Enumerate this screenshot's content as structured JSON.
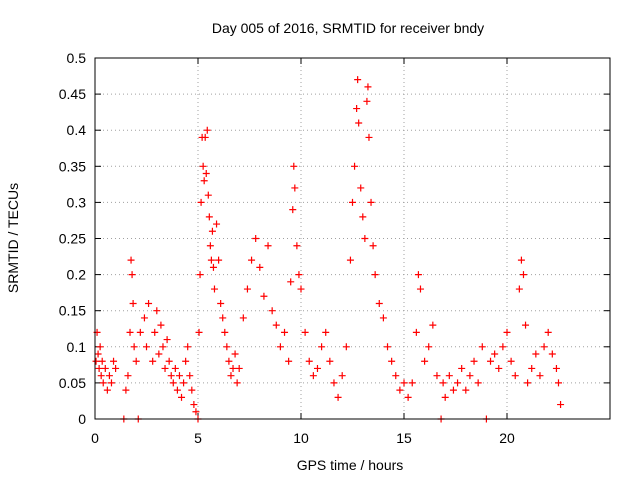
{
  "chart_data": {
    "type": "scatter",
    "title": "Day 005 of 2016, SRMTID for receiver bndy",
    "xlabel": "GPS time / hours",
    "ylabel": "SRMTID / TECUs",
    "xlim": [
      0,
      25
    ],
    "ylim": [
      0,
      0.5
    ],
    "x_ticks": [
      0,
      5,
      10,
      15,
      20
    ],
    "x_tick_labels": [
      "0",
      "5",
      "10",
      "15",
      "20"
    ],
    "y_ticks": [
      0,
      0.05,
      0.1,
      0.15,
      0.2,
      0.25,
      0.3,
      0.35,
      0.4,
      0.45,
      0.5
    ],
    "y_tick_labels": [
      "0",
      "0.05",
      "0.1",
      "0.15",
      "0.2",
      "0.25",
      "0.3",
      "0.35",
      "0.4",
      "0.45",
      "0.5"
    ],
    "grid": true,
    "marker": "+",
    "marker_color": "#ff0000",
    "series": [
      {
        "name": "SRMTID",
        "points": [
          [
            0.05,
            0.08
          ],
          [
            0.1,
            0.12
          ],
          [
            0.15,
            0.09
          ],
          [
            0.2,
            0.07
          ],
          [
            0.25,
            0.1
          ],
          [
            0.3,
            0.06
          ],
          [
            0.35,
            0.08
          ],
          [
            0.4,
            0.05
          ],
          [
            0.5,
            0.07
          ],
          [
            0.6,
            0.04
          ],
          [
            0.7,
            0.06
          ],
          [
            0.8,
            0.05
          ],
          [
            0.9,
            0.08
          ],
          [
            1.0,
            0.07
          ],
          [
            1.4,
            0.0
          ],
          [
            1.5,
            0.04
          ],
          [
            1.6,
            0.06
          ],
          [
            1.7,
            0.12
          ],
          [
            1.75,
            0.22
          ],
          [
            1.8,
            0.2
          ],
          [
            1.85,
            0.16
          ],
          [
            1.9,
            0.1
          ],
          [
            2.0,
            0.08
          ],
          [
            2.1,
            0.0
          ],
          [
            2.2,
            0.12
          ],
          [
            2.4,
            0.14
          ],
          [
            2.5,
            0.1
          ],
          [
            2.6,
            0.16
          ],
          [
            2.8,
            0.08
          ],
          [
            2.9,
            0.12
          ],
          [
            3.0,
            0.15
          ],
          [
            3.1,
            0.09
          ],
          [
            3.2,
            0.13
          ],
          [
            3.3,
            0.1
          ],
          [
            3.4,
            0.07
          ],
          [
            3.5,
            0.11
          ],
          [
            3.6,
            0.08
          ],
          [
            3.7,
            0.06
          ],
          [
            3.8,
            0.05
          ],
          [
            3.9,
            0.07
          ],
          [
            4.0,
            0.04
          ],
          [
            4.1,
            0.06
          ],
          [
            4.2,
            0.03
          ],
          [
            4.3,
            0.05
          ],
          [
            4.4,
            0.08
          ],
          [
            4.5,
            0.1
          ],
          [
            4.6,
            0.06
          ],
          [
            4.7,
            0.04
          ],
          [
            4.8,
            0.02
          ],
          [
            4.9,
            0.01
          ],
          [
            5.0,
            0.0
          ],
          [
            5.05,
            0.12
          ],
          [
            5.1,
            0.2
          ],
          [
            5.15,
            0.3
          ],
          [
            5.2,
            0.39
          ],
          [
            5.25,
            0.35
          ],
          [
            5.3,
            0.33
          ],
          [
            5.35,
            0.39
          ],
          [
            5.4,
            0.34
          ],
          [
            5.45,
            0.4
          ],
          [
            5.5,
            0.31
          ],
          [
            5.55,
            0.28
          ],
          [
            5.6,
            0.24
          ],
          [
            5.65,
            0.22
          ],
          [
            5.7,
            0.26
          ],
          [
            5.75,
            0.21
          ],
          [
            5.8,
            0.18
          ],
          [
            5.9,
            0.27
          ],
          [
            6.0,
            0.22
          ],
          [
            6.1,
            0.16
          ],
          [
            6.2,
            0.14
          ],
          [
            6.3,
            0.12
          ],
          [
            6.4,
            0.1
          ],
          [
            6.5,
            0.08
          ],
          [
            6.6,
            0.06
          ],
          [
            6.7,
            0.07
          ],
          [
            6.8,
            0.09
          ],
          [
            6.9,
            0.05
          ],
          [
            7.0,
            0.07
          ],
          [
            7.2,
            0.14
          ],
          [
            7.4,
            0.18
          ],
          [
            7.6,
            0.22
          ],
          [
            7.8,
            0.25
          ],
          [
            8.0,
            0.21
          ],
          [
            8.2,
            0.17
          ],
          [
            8.4,
            0.24
          ],
          [
            8.6,
            0.15
          ],
          [
            8.8,
            0.13
          ],
          [
            9.0,
            0.1
          ],
          [
            9.2,
            0.12
          ],
          [
            9.4,
            0.08
          ],
          [
            9.5,
            0.19
          ],
          [
            9.6,
            0.29
          ],
          [
            9.65,
            0.35
          ],
          [
            9.7,
            0.32
          ],
          [
            9.8,
            0.24
          ],
          [
            9.9,
            0.2
          ],
          [
            10.0,
            0.18
          ],
          [
            10.2,
            0.12
          ],
          [
            10.4,
            0.08
          ],
          [
            10.6,
            0.06
          ],
          [
            10.8,
            0.07
          ],
          [
            11.0,
            0.1
          ],
          [
            11.2,
            0.12
          ],
          [
            11.4,
            0.08
          ],
          [
            11.6,
            0.05
          ],
          [
            11.8,
            0.03
          ],
          [
            12.0,
            0.06
          ],
          [
            12.2,
            0.1
          ],
          [
            12.4,
            0.22
          ],
          [
            12.5,
            0.3
          ],
          [
            12.6,
            0.35
          ],
          [
            12.7,
            0.43
          ],
          [
            12.75,
            0.47
          ],
          [
            12.8,
            0.41
          ],
          [
            12.9,
            0.32
          ],
          [
            13.0,
            0.28
          ],
          [
            13.1,
            0.25
          ],
          [
            13.2,
            0.44
          ],
          [
            13.25,
            0.46
          ],
          [
            13.3,
            0.39
          ],
          [
            13.4,
            0.3
          ],
          [
            13.5,
            0.24
          ],
          [
            13.6,
            0.2
          ],
          [
            13.8,
            0.16
          ],
          [
            14.0,
            0.14
          ],
          [
            14.2,
            0.1
          ],
          [
            14.4,
            0.08
          ],
          [
            14.6,
            0.06
          ],
          [
            14.8,
            0.04
          ],
          [
            15.0,
            0.05
          ],
          [
            15.2,
            0.03
          ],
          [
            15.4,
            0.05
          ],
          [
            15.6,
            0.12
          ],
          [
            15.7,
            0.2
          ],
          [
            15.8,
            0.18
          ],
          [
            16.0,
            0.08
          ],
          [
            16.2,
            0.1
          ],
          [
            16.4,
            0.13
          ],
          [
            16.6,
            0.06
          ],
          [
            16.8,
            0.0
          ],
          [
            16.9,
            0.05
          ],
          [
            17.0,
            0.03
          ],
          [
            17.2,
            0.06
          ],
          [
            17.4,
            0.04
          ],
          [
            17.6,
            0.05
          ],
          [
            17.8,
            0.07
          ],
          [
            18.0,
            0.04
          ],
          [
            18.2,
            0.06
          ],
          [
            18.4,
            0.08
          ],
          [
            18.6,
            0.05
          ],
          [
            18.8,
            0.1
          ],
          [
            19.0,
            0.0
          ],
          [
            19.2,
            0.08
          ],
          [
            19.4,
            0.09
          ],
          [
            19.6,
            0.07
          ],
          [
            19.8,
            0.1
          ],
          [
            20.0,
            0.12
          ],
          [
            20.2,
            0.08
          ],
          [
            20.4,
            0.06
          ],
          [
            20.6,
            0.18
          ],
          [
            20.7,
            0.22
          ],
          [
            20.8,
            0.2
          ],
          [
            20.9,
            0.13
          ],
          [
            21.0,
            0.05
          ],
          [
            21.2,
            0.07
          ],
          [
            21.4,
            0.09
          ],
          [
            21.6,
            0.06
          ],
          [
            21.8,
            0.1
          ],
          [
            22.0,
            0.12
          ],
          [
            22.2,
            0.09
          ],
          [
            22.4,
            0.07
          ],
          [
            22.5,
            0.05
          ],
          [
            22.6,
            0.02
          ]
        ]
      }
    ]
  }
}
